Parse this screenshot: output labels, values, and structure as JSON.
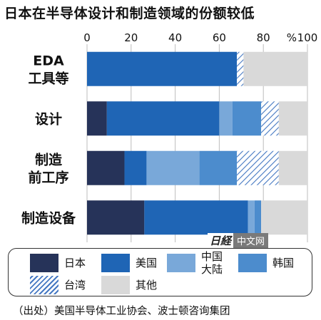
{
  "title": "日本在半导体设计和制造领域的份额较低",
  "source": "（出处）美国半导体工业协会、波士顿咨询集团",
  "logo": {
    "mark": "日経",
    "tag": "中文网"
  },
  "colors": {
    "japan": "#263359",
    "us": "#1f65b5",
    "china": "#79a8d9",
    "korea": "#4c8ccd",
    "taiwan_stroke": "#4578c2",
    "other": "#d9d9d9"
  },
  "chart_data": {
    "type": "bar",
    "orientation": "horizontal",
    "stacked": true,
    "unit": "%",
    "xlim": [
      0,
      100
    ],
    "ticks": [
      0,
      20,
      40,
      60,
      80,
      100
    ],
    "tick_labels": [
      "0",
      "20",
      "40",
      "60",
      "80",
      "100"
    ],
    "categories": [
      [
        "EDA",
        "工具等"
      ],
      [
        "设计"
      ],
      [
        "制造",
        "前工序"
      ],
      [
        "制造设备"
      ]
    ],
    "series": [
      {
        "name": "日本",
        "key": "japan",
        "values": [
          0,
          9,
          17,
          26
        ]
      },
      {
        "name": "美国",
        "key": "us",
        "values": [
          68,
          51,
          10,
          47
        ]
      },
      {
        "name": "中国大陆",
        "key": "china",
        "values": [
          0,
          6,
          24,
          3
        ]
      },
      {
        "name": "韩国",
        "key": "korea",
        "values": [
          0,
          13,
          17,
          3
        ]
      },
      {
        "name": "台湾",
        "key": "taiwan",
        "values": [
          3,
          8,
          19,
          0
        ]
      },
      {
        "name": "其他",
        "key": "other",
        "values": [
          29,
          13,
          13,
          21
        ]
      }
    ]
  },
  "legend": {
    "items": [
      {
        "key": "japan",
        "lines": [
          "日本"
        ]
      },
      {
        "key": "us",
        "lines": [
          "美国"
        ]
      },
      {
        "key": "china",
        "lines": [
          "中国",
          "大陆"
        ]
      },
      {
        "key": "korea",
        "lines": [
          "韩国"
        ]
      },
      {
        "key": "taiwan",
        "lines": [
          "台湾"
        ]
      },
      {
        "key": "other",
        "lines": [
          "其他"
        ]
      }
    ]
  }
}
